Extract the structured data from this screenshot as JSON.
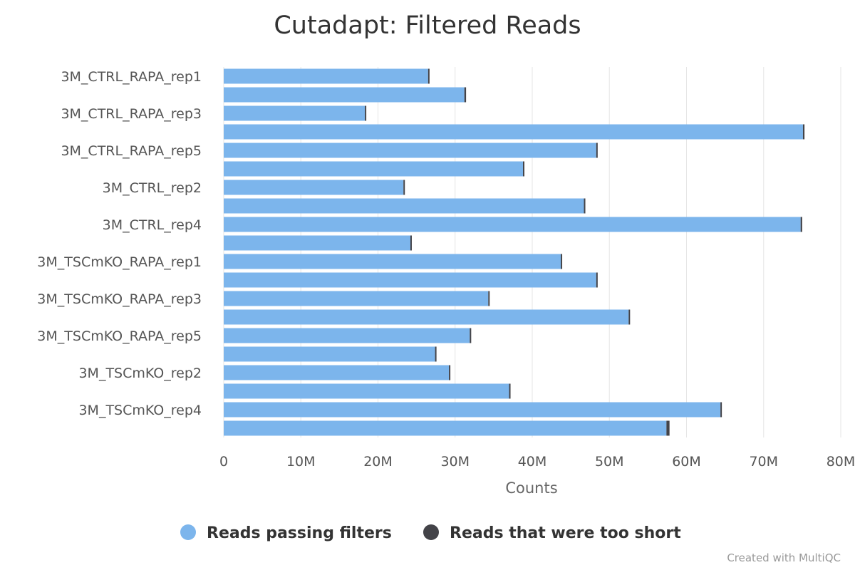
{
  "chart_data": {
    "type": "bar",
    "orientation": "horizontal",
    "stacked": true,
    "title": "Cutadapt: Filtered Reads",
    "xlabel": "Counts",
    "ylabel": "",
    "xlim": [
      0,
      80000000
    ],
    "ticks": [
      {
        "value": 0,
        "label": "0"
      },
      {
        "value": 10000000,
        "label": "10M"
      },
      {
        "value": 20000000,
        "label": "20M"
      },
      {
        "value": 30000000,
        "label": "30M"
      },
      {
        "value": 40000000,
        "label": "40M"
      },
      {
        "value": 50000000,
        "label": "50M"
      },
      {
        "value": 60000000,
        "label": "60M"
      },
      {
        "value": 70000000,
        "label": "70M"
      },
      {
        "value": 80000000,
        "label": "80M"
      }
    ],
    "grid": true,
    "legend_position": "bottom",
    "categories": [
      "3M_CTRL_RAPA_rep1",
      "",
      "3M_CTRL_RAPA_rep3",
      "",
      "3M_CTRL_RAPA_rep5",
      "",
      "3M_CTRL_rep2",
      "",
      "3M_CTRL_rep4",
      "",
      "3M_TSCmKO_RAPA_rep1",
      "",
      "3M_TSCmKO_RAPA_rep3",
      "",
      "3M_TSCmKO_RAPA_rep5",
      "",
      "3M_TSCmKO_rep2",
      "",
      "3M_TSCmKO_rep4",
      ""
    ],
    "series": [
      {
        "name": "Reads passing filters",
        "color": "#7cb5ec",
        "values": [
          26500000,
          31200000,
          18300000,
          75100000,
          48300000,
          38800000,
          23300000,
          46700000,
          74800000,
          24200000,
          43700000,
          48300000,
          34300000,
          52500000,
          31900000,
          27400000,
          29200000,
          37000000,
          64400000,
          57400000
        ]
      },
      {
        "name": "Reads that were too short",
        "color": "#434348",
        "values": [
          50000,
          220000,
          100000,
          200000,
          150000,
          60000,
          160000,
          180000,
          200000,
          170000,
          60000,
          170000,
          60000,
          50000,
          60000,
          60000,
          60000,
          60000,
          50000,
          400000
        ]
      }
    ]
  },
  "credits": "Created with MultiQC"
}
